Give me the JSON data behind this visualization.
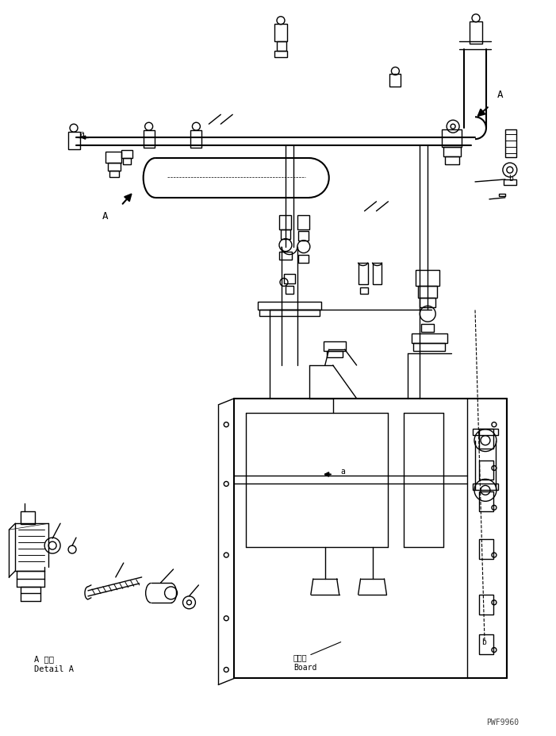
{
  "background_color": "#ffffff",
  "line_color": "#000000",
  "figure_width": 7.01,
  "figure_height": 9.27,
  "dpi": 100,
  "watermark": "PWF9960",
  "label_board_jp": "ボード",
  "label_board_en": "Board",
  "label_detail_jp": "A 詳細",
  "label_detail_en": "Detail A",
  "label_a": "a",
  "label_b": "b",
  "label_A": "A"
}
